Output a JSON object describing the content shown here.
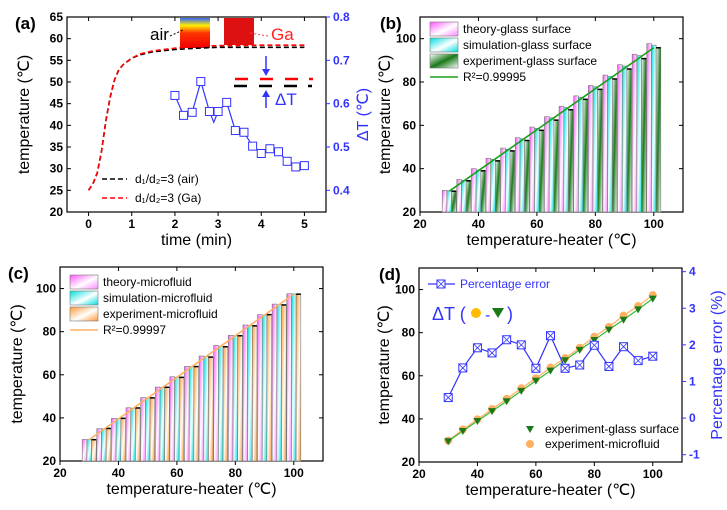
{
  "chart_data": [
    {
      "panel": "(a)",
      "type": "line",
      "xlabel": "time (min)",
      "ylabel": "temperature (℃)",
      "y2label": "ΔT (℃)",
      "xlim": [
        -0.5,
        5.5
      ],
      "ylim": [
        20,
        65
      ],
      "y2lim": [
        0.35,
        0.8
      ],
      "xticks": [
        0,
        1,
        2,
        3,
        4,
        5
      ],
      "yticks": [
        20,
        25,
        30,
        35,
        40,
        45,
        50,
        55,
        60,
        65
      ],
      "y2ticks": [
        0.4,
        0.5,
        0.6,
        0.7,
        0.8
      ],
      "series": [
        {
          "name": "d₁/d₂=3 (air)",
          "color": "#000000",
          "style": "dashed",
          "axis": "left",
          "x": [
            0,
            0.1,
            0.2,
            0.3,
            0.4,
            0.5,
            0.6,
            0.7,
            0.8,
            1.0,
            1.2,
            1.5,
            2,
            2.5,
            3,
            4,
            5
          ],
          "y": [
            25,
            26.5,
            29,
            34,
            41,
            46.5,
            50.5,
            52.8,
            54,
            55.5,
            56.3,
            57,
            57.5,
            57.8,
            58,
            58,
            58
          ]
        },
        {
          "name": "d₁/d₂=3 (Ga)",
          "color": "#ff0000",
          "style": "dashed",
          "axis": "left",
          "x": [
            0,
            0.1,
            0.2,
            0.3,
            0.4,
            0.5,
            0.6,
            0.7,
            0.8,
            1.0,
            1.2,
            1.5,
            2,
            2.5,
            3,
            4,
            5
          ],
          "y": [
            25,
            26.5,
            29,
            34,
            41,
            46.5,
            50.5,
            52.8,
            54,
            55.5,
            56.5,
            57.2,
            57.8,
            58.2,
            58.4,
            58.5,
            58.5
          ]
        },
        {
          "name": "ΔT",
          "color": "#3333ff",
          "style": "line-square",
          "axis": "right",
          "x": [
            2.0,
            2.2,
            2.4,
            2.6,
            2.8,
            2.9,
            3.0,
            3.2,
            3.4,
            3.6,
            3.8,
            4.0,
            4.2,
            4.4,
            4.6,
            4.8,
            5.0
          ],
          "y": [
            0.619,
            0.573,
            0.58,
            0.651,
            0.582,
            0.557,
            0.582,
            0.603,
            0.538,
            0.534,
            0.502,
            0.485,
            0.496,
            0.489,
            0.467,
            0.454,
            0.457
          ],
          "markers": [
            true,
            true,
            true,
            true,
            true,
            false,
            true,
            true,
            true,
            true,
            true,
            true,
            true,
            true,
            true,
            true,
            true
          ]
        }
      ],
      "annotations": {
        "air": "air",
        "ga": "Ga",
        "delta_t": "ΔT"
      }
    },
    {
      "panel": "(b)",
      "type": "bar",
      "xlabel": "temperature-heater (℃)",
      "ylabel": "temperature (℃)",
      "xlim": [
        20,
        110
      ],
      "ylim": [
        20,
        110
      ],
      "xticks": [
        20,
        40,
        60,
        80,
        100
      ],
      "yticks": [
        20,
        40,
        60,
        80,
        100
      ],
      "categories": [
        30,
        35,
        40,
        45,
        50,
        55,
        60,
        65,
        70,
        75,
        80,
        85,
        90,
        95,
        100
      ],
      "series": [
        {
          "name": "theory-glass surface",
          "color": "#ff66ff",
          "values": [
            30,
            35,
            40,
            44.8,
            49.5,
            54.3,
            59.2,
            64,
            68.8,
            73.6,
            78.4,
            83.2,
            88,
            92.8,
            97.7
          ]
        },
        {
          "name": "simulation-glass surface",
          "color": "#00e5e5",
          "values": [
            29.8,
            34.6,
            39.4,
            44.3,
            49,
            53.8,
            58.6,
            63.5,
            68.2,
            73,
            77.8,
            82.6,
            87.4,
            92.2,
            97
          ]
        },
        {
          "name": "experiment-glass surface",
          "color": "#1a7a1a",
          "values": [
            29.6,
            34.4,
            39,
            43.6,
            48.2,
            53,
            57.7,
            62.4,
            67.2,
            72,
            76.6,
            81.4,
            86,
            90.8,
            95.8
          ]
        }
      ],
      "fit": {
        "name": "R²=0.99995",
        "color": "#1aa01a",
        "x": [
          30,
          100
        ],
        "y": [
          29.6,
          95.8
        ]
      }
    },
    {
      "panel": "(c)",
      "type": "bar",
      "xlabel": "temperature-heater (℃)",
      "ylabel": "temperature (℃)",
      "xlim": [
        20,
        110
      ],
      "ylim": [
        20,
        110
      ],
      "xticks": [
        20,
        40,
        60,
        80,
        100
      ],
      "yticks": [
        20,
        40,
        60,
        80,
        100
      ],
      "categories": [
        30,
        35,
        40,
        45,
        50,
        55,
        60,
        65,
        70,
        75,
        80,
        85,
        90,
        95,
        100
      ],
      "series": [
        {
          "name": "theory-microfluid",
          "color": "#ff66ff",
          "values": [
            30,
            35,
            39.8,
            44.7,
            49.4,
            54.3,
            59.1,
            63.9,
            68.7,
            73.6,
            78.3,
            83.1,
            87.9,
            92.8,
            97.6
          ]
        },
        {
          "name": "simulation-microfluid",
          "color": "#00e5e5",
          "values": [
            29.9,
            34.9,
            39.7,
            44.5,
            49.3,
            54.1,
            58.9,
            63.8,
            68.5,
            73.3,
            78.1,
            82.9,
            87.7,
            92.5,
            97.5
          ]
        },
        {
          "name": "experiment-microfluid",
          "color": "#ff9933",
          "values": [
            29.9,
            35.1,
            39.8,
            44.6,
            49.3,
            54.2,
            58.8,
            63.8,
            68.2,
            73,
            78.1,
            82.7,
            87.9,
            92.4,
            97.4
          ]
        }
      ],
      "fit": {
        "name": "R²=0.99997",
        "color": "#ffb060",
        "x": [
          30,
          100
        ],
        "y": [
          29.9,
          97.4
        ]
      }
    },
    {
      "panel": "(d)",
      "type": "scatter",
      "xlabel": "temperature-heater (℃)",
      "ylabel": "temperature (℃)",
      "y2label": "Percentage error (%)",
      "xlim": [
        20,
        110
      ],
      "ylim": [
        20,
        110
      ],
      "y2lim": [
        -1.2,
        4.1
      ],
      "xticks": [
        20,
        40,
        60,
        80,
        100
      ],
      "yticks": [
        20,
        40,
        60,
        80,
        100
      ],
      "y2ticks": [
        -1,
        0,
        1,
        2,
        3,
        4
      ],
      "x": [
        30,
        35,
        40,
        45,
        50,
        55,
        60,
        65,
        70,
        75,
        80,
        85,
        90,
        95,
        100
      ],
      "series": [
        {
          "name": "experiment-glass surface",
          "color": "#1a7a1a",
          "marker": "triangle-down",
          "axis": "left",
          "y": [
            29.6,
            34.4,
            39,
            43.6,
            48.2,
            53,
            57.7,
            62.4,
            67.2,
            72,
            76.6,
            81.4,
            86,
            90.8,
            95.8
          ]
        },
        {
          "name": "experiment-microfluid",
          "color": "#ffb060",
          "marker": "circle",
          "axis": "left",
          "y": [
            29.9,
            35.1,
            39.8,
            44.6,
            49.3,
            54.2,
            58.8,
            63.8,
            68.2,
            73,
            78.1,
            82.7,
            87.9,
            92.4,
            97.4
          ]
        },
        {
          "name": "Percentage error",
          "color": "#3333ff",
          "marker": "boxed-x",
          "axis": "right",
          "y": [
            0.56,
            1.37,
            1.92,
            1.78,
            2.14,
            2.0,
            1.36,
            2.25,
            1.36,
            1.45,
            1.99,
            1.41,
            1.95,
            1.57,
            1.69
          ]
        }
      ],
      "annotation": {
        "delta_t": "ΔT (",
        "minus": "-",
        "close": ")"
      }
    }
  ]
}
